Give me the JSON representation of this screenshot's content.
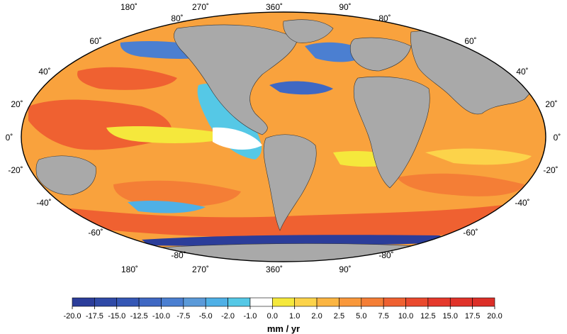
{
  "map": {
    "top_lon_labels": [
      "180˚",
      "270˚",
      "360˚",
      "90˚"
    ],
    "bottom_lon_labels": [
      "180˚",
      "270˚",
      "360˚",
      "90˚"
    ],
    "lat_labels_left": [
      "80˚",
      "60˚",
      "40˚",
      "20˚",
      "0˚",
      "-20˚",
      "-40˚",
      "-60˚",
      "-80˚"
    ],
    "lat_labels_right": [
      "80˚",
      "60˚",
      "40˚",
      "20˚",
      "0˚",
      "-20˚",
      "-40˚",
      "-60˚",
      "-80˚"
    ],
    "land_color": "#a9a9a9",
    "ocean_base_color": "#f9a23d"
  },
  "colorbar": {
    "ticks": [
      "-20.0",
      "-17.5",
      "-15.0",
      "-12.5",
      "-10.0",
      "-7.5",
      "-5.0",
      "-2.0",
      "-1.0",
      "0.0",
      "1.0",
      "2.0",
      "2.5",
      "5.0",
      "7.5",
      "10.0",
      "12.5",
      "15.0",
      "17.5",
      "20.0"
    ],
    "colors": [
      "#2b3d9a",
      "#2f4aa7",
      "#3557b5",
      "#3f68c3",
      "#4b7fd1",
      "#5b9ad9",
      "#4fb0e6",
      "#55c8e6",
      "#ffffff",
      "#f5e83c",
      "#fcd34a",
      "#fbb542",
      "#f9983b",
      "#f47e36",
      "#ef6131",
      "#ea4a2e",
      "#e5392c",
      "#e0332a",
      "#dc2f28"
    ],
    "unit_label": "mm / yr"
  }
}
